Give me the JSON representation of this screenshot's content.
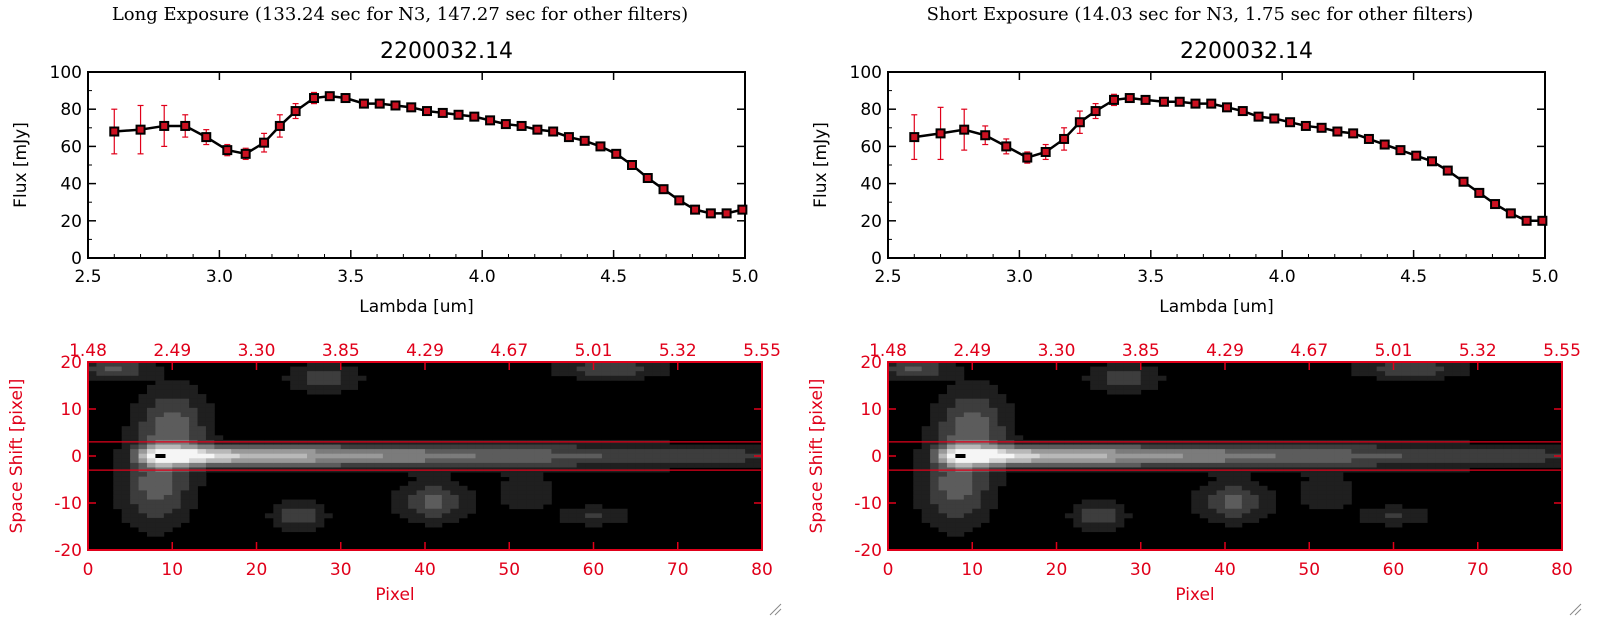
{
  "colors": {
    "accent_red": "#e0001a",
    "line": "#000000",
    "errorbar": "#e0001a",
    "marker_fill": "#cc1020"
  },
  "panels": [
    {
      "header": "Long Exposure (133.24 sec for N3, 147.27 sec for other filters)",
      "chart_data": {
        "type": "line",
        "title": "2200032.14",
        "xlabel": "Lambda [um]",
        "ylabel": "Flux [mJy]",
        "xlim": [
          2.5,
          5.0
        ],
        "ylim": [
          0,
          100
        ],
        "xticks": [
          "2.5",
          "3.0",
          "3.5",
          "4.0",
          "4.5",
          "5.0"
        ],
        "yticks": [
          "0",
          "20",
          "40",
          "60",
          "80",
          "100"
        ],
        "series": [
          {
            "x": [
              2.6,
              2.7,
              2.79,
              2.87,
              2.95,
              3.03,
              3.1,
              3.17,
              3.23,
              3.29,
              3.36,
              3.42,
              3.48,
              3.55,
              3.61,
              3.67,
              3.73,
              3.79,
              3.85,
              3.91,
              3.97,
              4.03,
              4.09,
              4.15,
              4.21,
              4.27,
              4.33,
              4.39,
              4.45,
              4.51,
              4.57,
              4.63,
              4.69,
              4.75,
              4.81,
              4.87,
              4.93,
              4.99
            ],
            "y": [
              68,
              69,
              71,
              71,
              65,
              58,
              56,
              62,
              71,
              79,
              86,
              87,
              86,
              83,
              83,
              82,
              81,
              79,
              78,
              77,
              76,
              74,
              72,
              71,
              69,
              68,
              65,
              63,
              60,
              56,
              50,
              43,
              37,
              31,
              26,
              24,
              24,
              26
            ],
            "err": [
              12,
              13,
              11,
              6,
              4,
              3,
              3,
              5,
              6,
              4,
              3,
              1,
              1,
              1,
              1,
              1,
              1,
              1,
              1,
              1,
              1,
              1,
              1,
              1,
              1,
              1,
              1,
              1,
              1,
              1,
              1,
              1,
              1,
              1,
              1,
              1,
              1,
              1
            ]
          }
        ]
      },
      "heatmap": {
        "type": "heatmap",
        "xlabel": "Pixel",
        "ylabel": "Space Shift [pixel]",
        "xlim": [
          0,
          80
        ],
        "ylim": [
          -20,
          20
        ],
        "xticks": [
          "0",
          "10",
          "20",
          "30",
          "40",
          "50",
          "60",
          "70",
          "80"
        ],
        "yticks": [
          "-20",
          "-10",
          "0",
          "10",
          "20"
        ],
        "top_ticks": [
          "1.48",
          "2.49",
          "3.30",
          "3.85",
          "4.29",
          "4.67",
          "5.01",
          "5.32",
          "5.55"
        ],
        "aperture": [
          -3,
          3
        ]
      }
    },
    {
      "header": "Short Exposure (14.03 sec for N3, 1.75 sec for other filters)",
      "chart_data": {
        "type": "line",
        "title": "2200032.14",
        "xlabel": "Lambda [um]",
        "ylabel": "Flux [mJy]",
        "xlim": [
          2.5,
          5.0
        ],
        "ylim": [
          0,
          100
        ],
        "xticks": [
          "2.5",
          "3.0",
          "3.5",
          "4.0",
          "4.5",
          "5.0"
        ],
        "yticks": [
          "0",
          "20",
          "40",
          "60",
          "80",
          "100"
        ],
        "series": [
          {
            "x": [
              2.6,
              2.7,
              2.79,
              2.87,
              2.95,
              3.03,
              3.1,
              3.17,
              3.23,
              3.29,
              3.36,
              3.42,
              3.48,
              3.55,
              3.61,
              3.67,
              3.73,
              3.79,
              3.85,
              3.91,
              3.97,
              4.03,
              4.09,
              4.15,
              4.21,
              4.27,
              4.33,
              4.39,
              4.45,
              4.51,
              4.57,
              4.63,
              4.69,
              4.75,
              4.81,
              4.87,
              4.93,
              4.99
            ],
            "y": [
              65,
              67,
              69,
              66,
              60,
              54,
              57,
              64,
              73,
              79,
              85,
              86,
              85,
              84,
              84,
              83,
              83,
              81,
              79,
              76,
              75,
              73,
              71,
              70,
              68,
              67,
              64,
              61,
              58,
              55,
              52,
              47,
              41,
              35,
              29,
              24,
              20,
              20
            ],
            "err": [
              12,
              14,
              11,
              5,
              4,
              3,
              4,
              6,
              6,
              4,
              3,
              1,
              1,
              1,
              1,
              1,
              1,
              1,
              1,
              1,
              1,
              1,
              1,
              1,
              1,
              1,
              1,
              1,
              1,
              1,
              1,
              1,
              1,
              1,
              1,
              1,
              1,
              1
            ]
          }
        ]
      },
      "heatmap": {
        "type": "heatmap",
        "xlabel": "Pixel",
        "ylabel": "Space Shift [pixel]",
        "xlim": [
          0,
          80
        ],
        "ylim": [
          -20,
          20
        ],
        "xticks": [
          "0",
          "10",
          "20",
          "30",
          "40",
          "50",
          "60",
          "70",
          "80"
        ],
        "yticks": [
          "-20",
          "-10",
          "0",
          "10",
          "20"
        ],
        "top_ticks": [
          "1.48",
          "2.49",
          "3.30",
          "3.85",
          "4.29",
          "4.67",
          "5.01",
          "5.32",
          "5.55"
        ],
        "aperture": [
          -3,
          3
        ]
      }
    }
  ]
}
